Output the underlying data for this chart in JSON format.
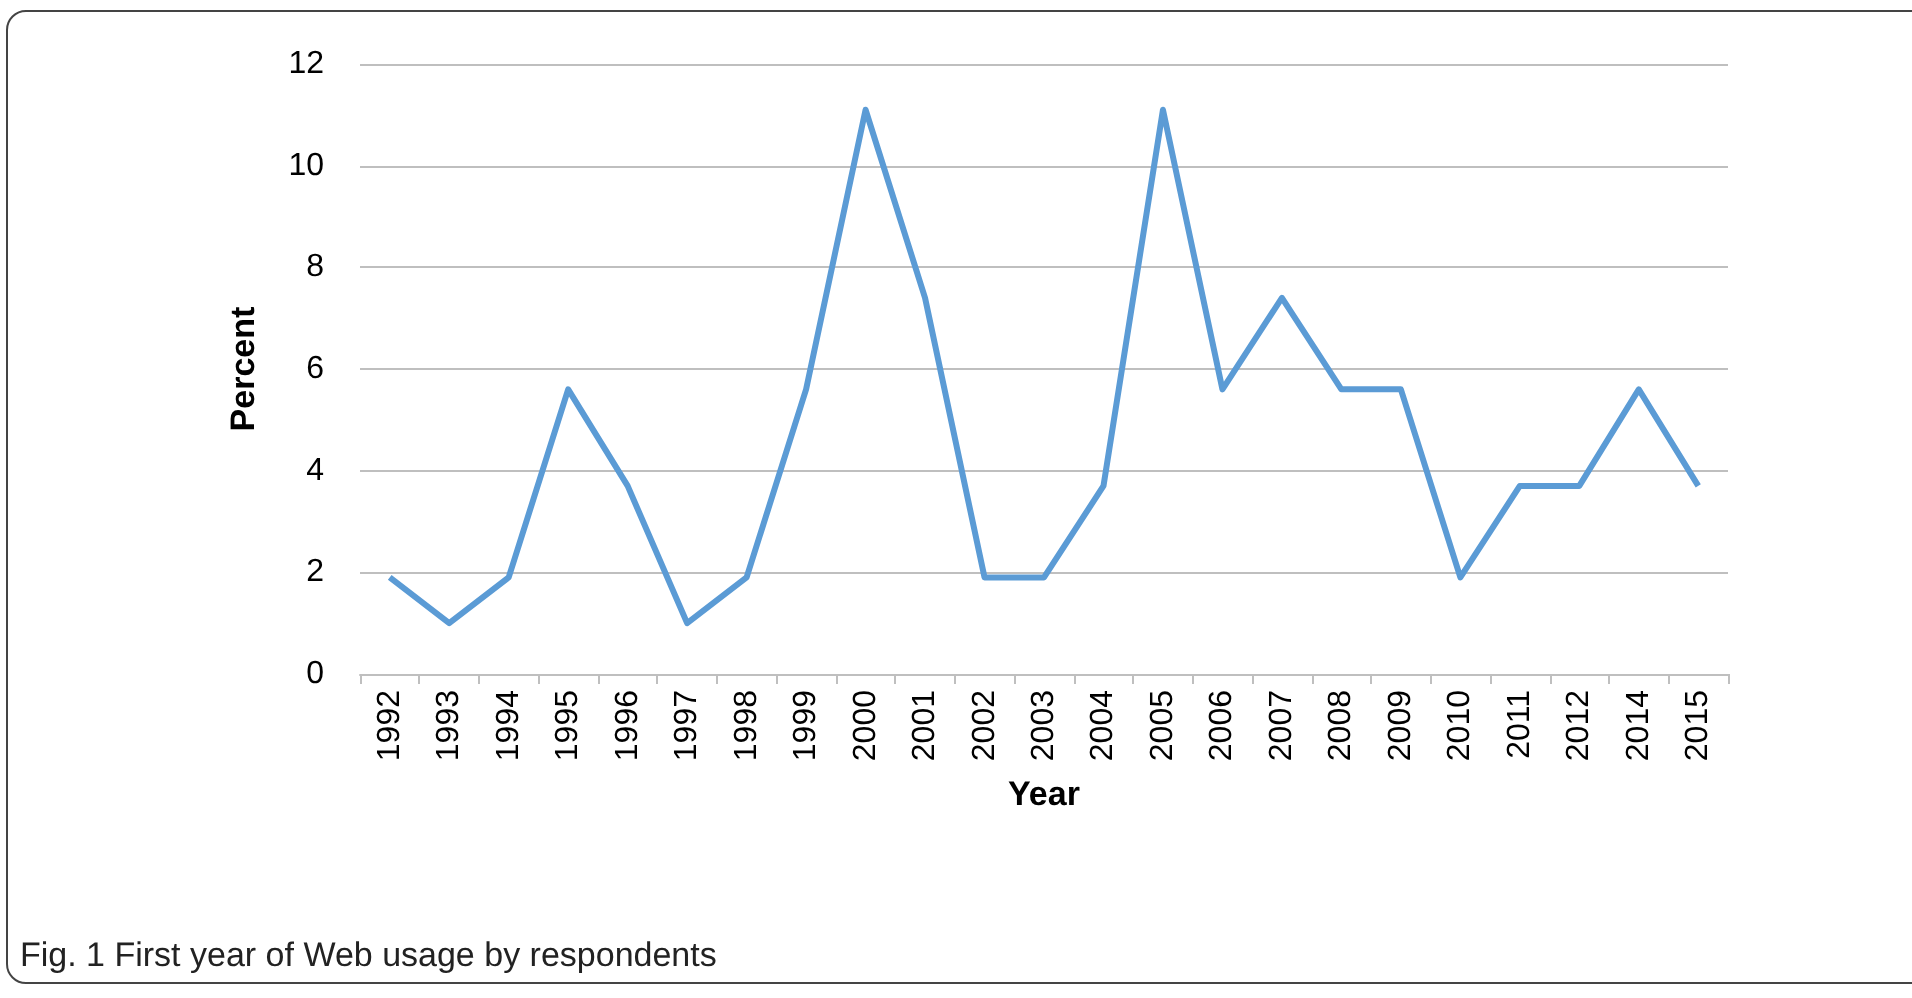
{
  "chart_data": {
    "type": "line",
    "xlabel": "Year",
    "ylabel": "Percent",
    "categories": [
      "1992",
      "1993",
      "1994",
      "1995",
      "1996",
      "1997",
      "1998",
      "1999",
      "2000",
      "2001",
      "2002",
      "2003",
      "2004",
      "2005",
      "2006",
      "2007",
      "2008",
      "2009",
      "2010",
      "2011",
      "2012",
      "2014",
      "2015"
    ],
    "series": [
      {
        "color": "#5b9bd5",
        "values": [
          1.9,
          1,
          1.9,
          5.6,
          3.7,
          1,
          1.9,
          5.6,
          11.1,
          7.4,
          1.9,
          1.9,
          3.7,
          11.1,
          5.6,
          7.4,
          5.6,
          5.6,
          1.9,
          3.7,
          3.7,
          5.6,
          3.7
        ]
      }
    ],
    "ylim": [
      0,
      12
    ],
    "yticks": [
      0,
      2,
      4,
      6,
      8,
      10,
      12
    ],
    "grid": "y",
    "marker": "none",
    "line_style": "solid",
    "annotations": [
      "Fig. 1 First year of Web usage by respondents"
    ]
  }
}
